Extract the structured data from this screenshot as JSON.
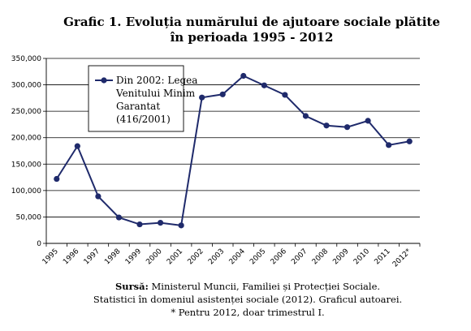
{
  "chart_data": {
    "type": "line",
    "title_lines": [
      "Grafic 1. Evoluția numărului de ajutoare sociale plătite",
      "în perioada 1995 - 2012"
    ],
    "categories": [
      "1995",
      "1996",
      "1997",
      "1998",
      "1999",
      "2000",
      "2001",
      "2002",
      "2003",
      "2004",
      "2005",
      "2006",
      "2007",
      "2008",
      "2009",
      "2010",
      "2011",
      "2012*"
    ],
    "series": [
      {
        "name": "Din 2002: Legea Venitului Minim Garantat (416/2001)",
        "name_lines": [
          "Din 2002: Legea",
          "Venitului Minim",
          "Garantat",
          "(416/2001)"
        ],
        "color": "#1f2a6b",
        "values": [
          122000,
          184000,
          89000,
          49000,
          36000,
          39000,
          34000,
          276000,
          282000,
          317000,
          299000,
          281000,
          241000,
          223000,
          220000,
          232000,
          186000,
          193000
        ]
      }
    ],
    "yticks": [
      "0",
      "50,000",
      "100,000",
      "150,000",
      "200,000",
      "250,000",
      "300,000",
      "350,000"
    ],
    "ylim": [
      0,
      350000
    ],
    "grid": true,
    "legend_position": "top-left-inside"
  },
  "source_lines": {
    "bold_prefix": "Sursă:",
    "line1_rest": " Ministerul Muncii, Familiei și Protecției Sociale.",
    "line2": "Statistici în domeniul asistenței sociale (2012). Graficul autoarei.",
    "line3": "* Pentru 2012, doar trimestrul I."
  }
}
